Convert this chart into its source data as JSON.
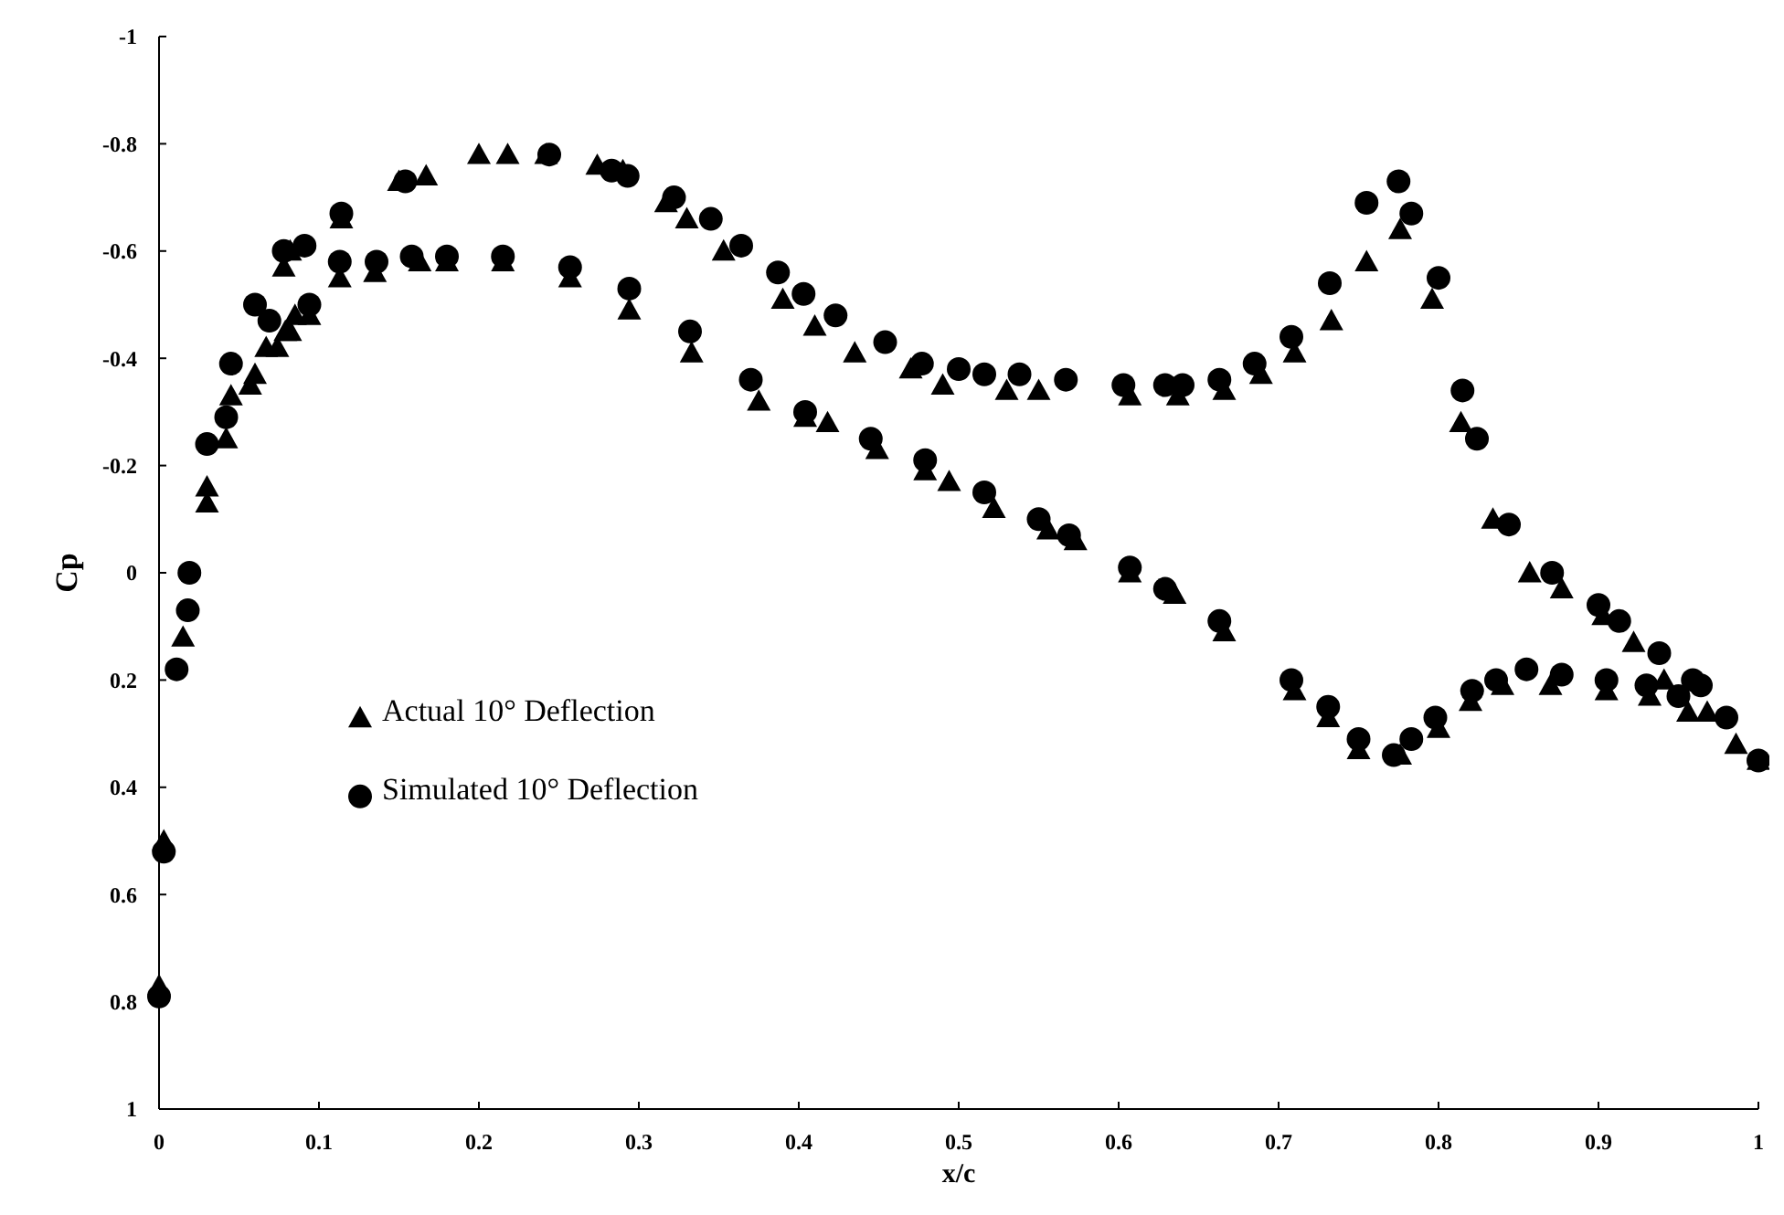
{
  "chart_data": {
    "type": "scatter",
    "xlabel": "x/c",
    "ylabel": "Cp",
    "xlim": [
      0,
      1
    ],
    "ylim": [
      1,
      -1
    ],
    "xticks": [
      0,
      0.1,
      0.2,
      0.3,
      0.4,
      0.5,
      0.6,
      0.7,
      0.8,
      0.9,
      1
    ],
    "yticks": [
      -1,
      -0.8,
      -0.6,
      -0.4,
      -0.2,
      0,
      0.2,
      0.4,
      0.6,
      0.8,
      1
    ],
    "grid": false,
    "legend": "left",
    "series": [
      {
        "name": "Actual 10° Deflection",
        "color": "#000000",
        "marker": "triangle",
        "x": [
          0,
          0.003,
          0.015,
          0.03,
          0.03,
          0.042,
          0.045,
          0.057,
          0.067,
          0.079,
          0.085,
          0.078,
          0.082,
          0.114,
          0.15,
          0.167,
          0.2,
          0.218,
          0.242,
          0.274,
          0.29,
          0.317,
          0.33,
          0.353,
          0.39,
          0.41,
          0.435,
          0.47,
          0.49,
          0.53,
          0.55,
          0.607,
          0.637,
          0.666,
          0.689,
          0.71,
          0.733,
          0.755,
          0.776,
          0.796,
          0.814,
          0.834,
          0.857,
          0.877,
          0.903,
          0.922,
          0.941,
          0.968,
          0.986,
          1.0,
          0.06,
          0.074,
          0.082,
          0.094,
          0.113,
          0.135,
          0.163,
          0.18,
          0.215,
          0.257,
          0.294,
          0.333,
          0.375,
          0.404,
          0.418,
          0.449,
          0.479,
          0.494,
          0.522,
          0.556,
          0.573,
          0.607,
          0.635,
          0.666,
          0.71,
          0.731,
          0.75,
          0.776,
          0.8,
          0.82,
          0.84,
          0.87,
          0.905,
          0.932,
          0.956
        ],
        "values": [
          0.77,
          0.5,
          0.12,
          -0.13,
          -0.16,
          -0.25,
          -0.33,
          -0.35,
          -0.42,
          -0.45,
          -0.48,
          -0.57,
          -0.6,
          -0.66,
          -0.73,
          -0.74,
          -0.78,
          -0.78,
          -0.78,
          -0.76,
          -0.75,
          -0.69,
          -0.66,
          -0.6,
          -0.51,
          -0.46,
          -0.41,
          -0.38,
          -0.35,
          -0.34,
          -0.34,
          -0.33,
          -0.33,
          -0.34,
          -0.37,
          -0.41,
          -0.47,
          -0.58,
          -0.64,
          -0.51,
          -0.28,
          -0.1,
          0,
          0.03,
          0.08,
          0.13,
          0.2,
          0.26,
          0.32,
          0.35,
          -0.37,
          -0.42,
          -0.45,
          -0.48,
          -0.55,
          -0.56,
          -0.58,
          -0.58,
          -0.58,
          -0.55,
          -0.49,
          -0.41,
          -0.32,
          -0.29,
          -0.28,
          -0.23,
          -0.19,
          -0.17,
          -0.12,
          -0.08,
          -0.06,
          0,
          0.04,
          0.11,
          0.22,
          0.27,
          0.33,
          0.34,
          0.29,
          0.24,
          0.21,
          0.21,
          0.22,
          0.23,
          0.26
        ]
      },
      {
        "name": "Simulated 10° Deflection",
        "color": "#000000",
        "marker": "circle",
        "x": [
          0,
          0.003,
          0.011,
          0.018,
          0.019,
          0.03,
          0.042,
          0.045,
          0.06,
          0.078,
          0.091,
          0.114,
          0.154,
          0.244,
          0.283,
          0.293,
          0.322,
          0.345,
          0.364,
          0.387,
          0.403,
          0.423,
          0.454,
          0.477,
          0.5,
          0.516,
          0.538,
          0.567,
          0.603,
          0.629,
          0.64,
          0.663,
          0.685,
          0.708,
          0.732,
          0.755,
          0.775,
          0.783,
          0.8,
          0.815,
          0.824,
          0.844,
          0.871,
          0.9,
          0.913,
          0.938,
          0.959,
          0.069,
          0.094,
          0.113,
          0.136,
          0.158,
          0.18,
          0.215,
          0.257,
          0.294,
          0.332,
          0.37,
          0.404,
          0.445,
          0.479,
          0.516,
          0.55,
          0.569,
          0.607,
          0.629,
          0.663,
          0.708,
          0.731,
          0.75,
          0.772,
          0.783,
          0.798,
          0.821,
          0.836,
          0.855,
          0.877,
          0.905,
          0.93,
          0.95,
          0.964,
          0.98,
          1.0
        ],
        "values": [
          0.79,
          0.52,
          0.18,
          0.07,
          0,
          -0.24,
          -0.29,
          -0.39,
          -0.5,
          -0.6,
          -0.61,
          -0.67,
          -0.73,
          -0.78,
          -0.75,
          -0.74,
          -0.7,
          -0.66,
          -0.61,
          -0.56,
          -0.52,
          -0.48,
          -0.43,
          -0.39,
          -0.38,
          -0.37,
          -0.37,
          -0.36,
          -0.35,
          -0.35,
          -0.35,
          -0.36,
          -0.39,
          -0.44,
          -0.54,
          -0.69,
          -0.73,
          -0.67,
          -0.55,
          -0.34,
          -0.25,
          -0.09,
          0,
          0.06,
          0.09,
          0.15,
          0.2,
          -0.47,
          -0.5,
          -0.58,
          -0.58,
          -0.59,
          -0.59,
          -0.59,
          -0.57,
          -0.53,
          -0.45,
          -0.36,
          -0.3,
          -0.25,
          -0.21,
          -0.15,
          -0.1,
          -0.07,
          -0.01,
          0.03,
          0.09,
          0.2,
          0.25,
          0.31,
          0.34,
          0.31,
          0.27,
          0.22,
          0.2,
          0.18,
          0.19,
          0.2,
          0.21,
          0.23,
          0.21,
          0.27,
          0.35
        ]
      }
    ]
  }
}
